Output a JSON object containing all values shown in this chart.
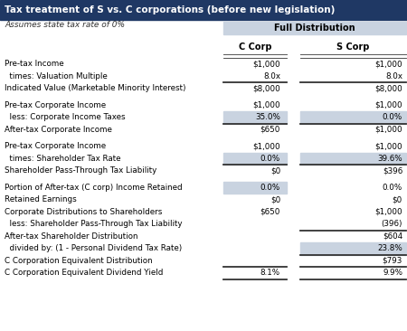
{
  "title": "Tax treatment of S vs. C corporations (before new legislation)",
  "subtitle": "Assumes state tax rate of 0%",
  "header_group": "Full Distribution",
  "col_headers": [
    "C Corp",
    "S Corp"
  ],
  "title_bg": "#1f3864",
  "title_fg": "#ffffff",
  "header_group_bg": "#c9d3e0",
  "highlight_bg": "#c9d3e0",
  "fig_w": 4.5,
  "fig_h": 3.66,
  "dpi": 100,
  "rows": [
    {
      "label": "Pre-tax Income",
      "c": "$1,000",
      "s": "$1,000",
      "c_hl": false,
      "s_hl": false,
      "top_border": true,
      "thick_top": false,
      "spacer": false
    },
    {
      "label": "  times: Valuation Multiple",
      "c": "8.0x",
      "s": "8.0x",
      "c_hl": false,
      "s_hl": false,
      "top_border": false,
      "thick_top": false,
      "spacer": false
    },
    {
      "label": "Indicated Value (Marketable Minority Interest)",
      "c": "$8,000",
      "s": "$8,000",
      "c_hl": false,
      "s_hl": false,
      "top_border": true,
      "thick_top": true,
      "spacer": false
    },
    {
      "label": "",
      "c": "",
      "s": "",
      "c_hl": false,
      "s_hl": false,
      "top_border": false,
      "thick_top": false,
      "spacer": true
    },
    {
      "label": "Pre-tax Corporate Income",
      "c": "$1,000",
      "s": "$1,000",
      "c_hl": false,
      "s_hl": false,
      "top_border": false,
      "thick_top": false,
      "spacer": false
    },
    {
      "label": "  less: Corporate Income Taxes",
      "c": "35.0%",
      "s": "0.0%",
      "c_hl": true,
      "s_hl": true,
      "top_border": false,
      "thick_top": false,
      "spacer": false
    },
    {
      "label": "After-tax Corporate Income",
      "c": "$650",
      "s": "$1,000",
      "c_hl": false,
      "s_hl": false,
      "top_border": true,
      "thick_top": true,
      "spacer": false
    },
    {
      "label": "",
      "c": "",
      "s": "",
      "c_hl": false,
      "s_hl": false,
      "top_border": false,
      "thick_top": false,
      "spacer": true
    },
    {
      "label": "Pre-tax Corporate Income",
      "c": "$1,000",
      "s": "$1,000",
      "c_hl": false,
      "s_hl": false,
      "top_border": false,
      "thick_top": false,
      "spacer": false
    },
    {
      "label": "  times: Shareholder Tax Rate",
      "c": "0.0%",
      "s": "39.6%",
      "c_hl": true,
      "s_hl": true,
      "top_border": false,
      "thick_top": false,
      "spacer": false
    },
    {
      "label": "Shareholder Pass-Through Tax Liability",
      "c": "$0",
      "s": "$396",
      "c_hl": false,
      "s_hl": false,
      "top_border": true,
      "thick_top": true,
      "spacer": false
    },
    {
      "label": "",
      "c": "",
      "s": "",
      "c_hl": false,
      "s_hl": false,
      "top_border": false,
      "thick_top": false,
      "spacer": true
    },
    {
      "label": "Portion of After-tax (C corp) Income Retained",
      "c": "0.0%",
      "s": "0.0%",
      "c_hl": true,
      "s_hl": false,
      "top_border": false,
      "thick_top": false,
      "spacer": false
    },
    {
      "label": "Retained Earnings",
      "c": "$0",
      "s": "$0",
      "c_hl": false,
      "s_hl": false,
      "top_border": false,
      "thick_top": false,
      "spacer": false
    },
    {
      "label": "Corporate Distributions to Shareholders",
      "c": "$650",
      "s": "$1,000",
      "c_hl": false,
      "s_hl": false,
      "top_border": false,
      "thick_top": false,
      "spacer": false
    },
    {
      "label": "  less: Shareholder Pass-Through Tax Liability",
      "c": "",
      "s": "(396)",
      "c_hl": false,
      "s_hl": false,
      "top_border": false,
      "thick_top": false,
      "spacer": false
    },
    {
      "label": "After-tax Shareholder Distribution",
      "c": "",
      "s": "$604",
      "c_hl": false,
      "s_hl": false,
      "top_border": true,
      "thick_top": true,
      "spacer": false
    },
    {
      "label": "  divided by: (1 - Personal Dividend Tax Rate)",
      "c": "",
      "s": "23.8%",
      "c_hl": false,
      "s_hl": true,
      "top_border": false,
      "thick_top": false,
      "spacer": false
    },
    {
      "label": "C Corporation Equivalent Distribution",
      "c": "",
      "s": "$793",
      "c_hl": false,
      "s_hl": false,
      "top_border": true,
      "thick_top": true,
      "spacer": false
    },
    {
      "label": "C Corporation Equivalent Dividend Yield",
      "c": "8.1%",
      "s": "9.9%",
      "c_hl": false,
      "s_hl": false,
      "top_border": true,
      "thick_top": true,
      "spacer": false
    }
  ]
}
